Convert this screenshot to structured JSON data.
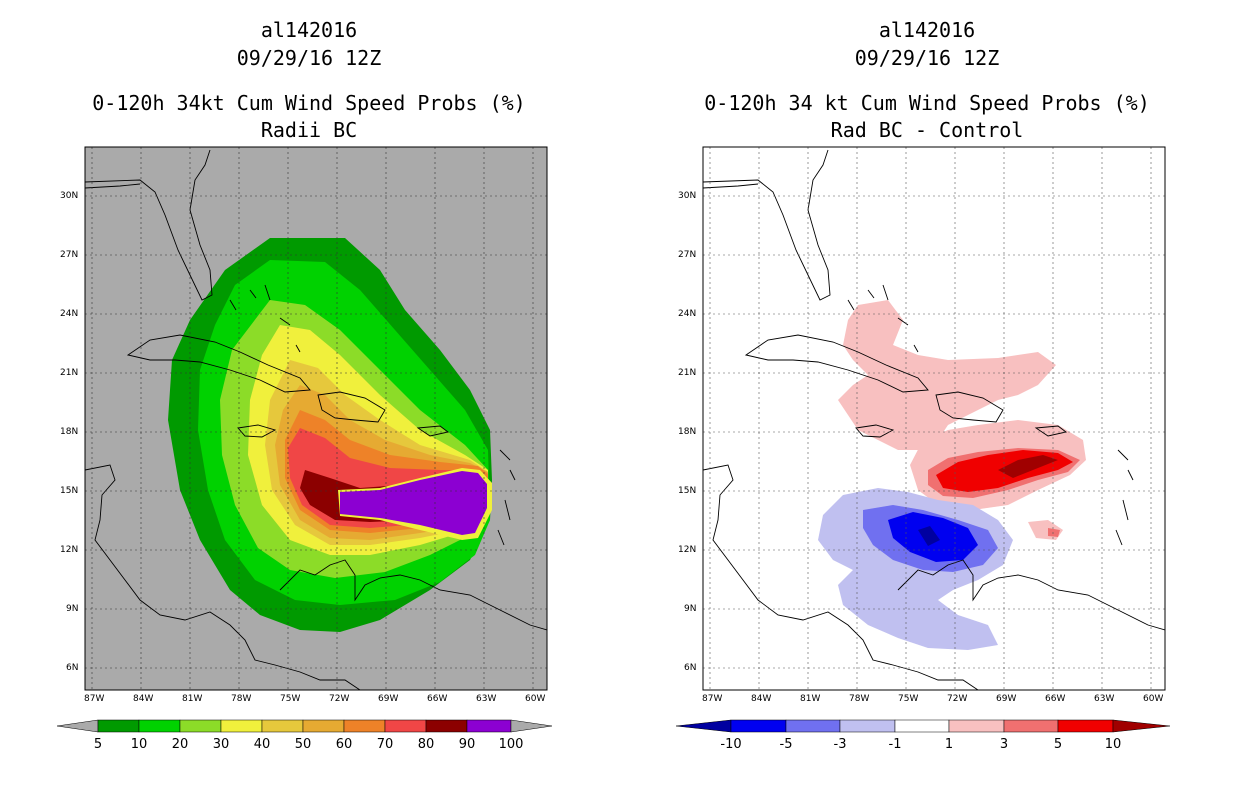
{
  "left": {
    "storm_id": "al142016",
    "datetime": "09/29/16 12Z",
    "title": "0-120h 34kt Cum Wind Speed Probs (%)",
    "subtitle": "Radii BC",
    "lat_labels": [
      "30N",
      "27N",
      "24N",
      "21N",
      "18N",
      "15N",
      "12N",
      "9N",
      "6N"
    ],
    "lon_labels": [
      "87W",
      "84W",
      "81W",
      "78W",
      "75W",
      "72W",
      "69W",
      "66W",
      "63W",
      "60W"
    ],
    "colorbar": {
      "labels": [
        "5",
        "10",
        "20",
        "30",
        "40",
        "50",
        "60",
        "70",
        "80",
        "90",
        "100"
      ],
      "colors": [
        "#009a00",
        "#00d200",
        "#8cdc28",
        "#f0f03c",
        "#e6c83c",
        "#e6aa32",
        "#ee8228",
        "#f04646",
        "#8c0000",
        "#8c00d2"
      ]
    }
  },
  "right": {
    "storm_id": "al142016",
    "datetime": "09/29/16 12Z",
    "title": "0-120h 34 kt Cum Wind Speed Probs (%)",
    "subtitle": "Rad BC - Control",
    "lat_labels": [
      "30N",
      "27N",
      "24N",
      "21N",
      "18N",
      "15N",
      "12N",
      "9N",
      "6N"
    ],
    "lon_labels": [
      "87W",
      "84W",
      "81W",
      "78W",
      "75W",
      "72W",
      "69W",
      "66W",
      "63W",
      "60W"
    ],
    "colorbar": {
      "labels": [
        "-10",
        "-5",
        "-3",
        "-1",
        "1",
        "3",
        "5",
        "10"
      ],
      "colors": [
        "#0000a0",
        "#0000f0",
        "#7070f0",
        "#c0c0f0",
        "#ffffff",
        "#f8c0c0",
        "#f07070",
        "#f00000",
        "#a00000"
      ]
    }
  }
}
